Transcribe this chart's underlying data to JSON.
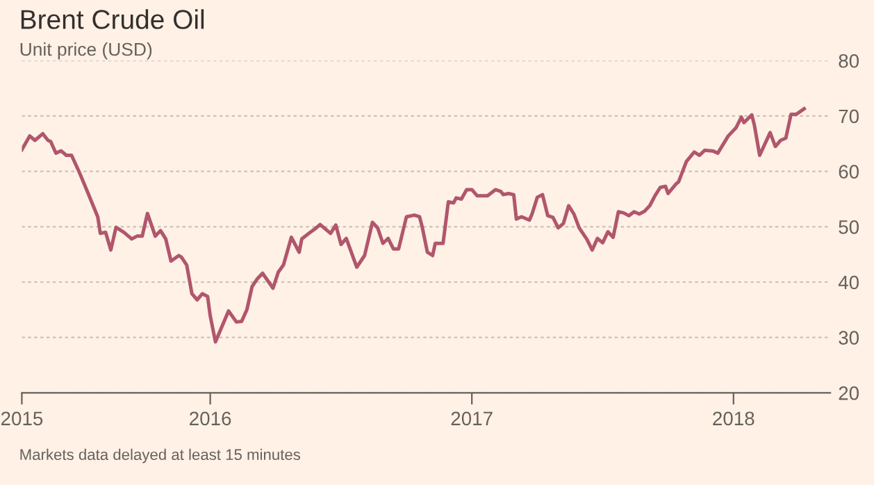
{
  "chart_data": {
    "type": "line",
    "title": "Brent Crude Oil",
    "subtitle": "Unit price (USD)",
    "annotations": [
      "Markets data delayed at least 15 minutes"
    ],
    "series": [
      {
        "color": "#b0566d",
        "x": [
          2015.28,
          2015.31,
          2015.33,
          2015.36,
          2015.38,
          2015.39,
          2015.41,
          2015.43,
          2015.45,
          2015.47,
          2015.5,
          2015.53,
          2015.57,
          2015.58,
          2015.6,
          2015.62,
          2015.64,
          2015.67,
          2015.7,
          2015.72,
          2015.74,
          2015.76,
          2015.79,
          2015.81,
          2015.83,
          2015.85,
          2015.88,
          2015.89,
          2015.91,
          2015.93,
          2015.95,
          2015.97,
          2015.99,
          2016.0,
          2016.02,
          2016.07,
          2016.1,
          2016.12,
          2016.14,
          2016.16,
          2016.18,
          2016.2,
          2016.24,
          2016.26,
          2016.28,
          2016.31,
          2016.34,
          2016.35,
          2016.38,
          2016.4,
          2016.42,
          2016.46,
          2016.48,
          2016.5,
          2016.52,
          2016.56,
          2016.59,
          2016.62,
          2016.64,
          2016.66,
          2016.68,
          2016.7,
          2016.72,
          2016.75,
          2016.78,
          2016.8,
          2016.81,
          2016.83,
          2016.85,
          2016.86,
          2016.89,
          2016.91,
          2016.93,
          2016.94,
          2016.96,
          2016.98,
          2017.0,
          2017.02,
          2017.06,
          2017.09,
          2017.11,
          2017.12,
          2017.14,
          2017.16,
          2017.17,
          2017.19,
          2017.22,
          2017.23,
          2017.25,
          2017.27,
          2017.29,
          2017.31,
          2017.33,
          2017.35,
          2017.37,
          2017.39,
          2017.41,
          2017.44,
          2017.46,
          2017.48,
          2017.5,
          2017.52,
          2017.54,
          2017.56,
          2017.58,
          2017.6,
          2017.62,
          2017.64,
          2017.66,
          2017.68,
          2017.7,
          2017.72,
          2017.74,
          2017.75,
          2017.78,
          2017.79,
          2017.82,
          2017.85,
          2017.87,
          2017.89,
          2017.92,
          2017.94,
          2017.98,
          2018.01,
          2018.03,
          2018.04,
          2018.07,
          2018.08,
          2018.1,
          2018.14,
          2018.16,
          2018.18,
          2018.2,
          2018.22,
          2018.24,
          2018.27
        ],
        "values": [
          63.9,
          66.4,
          65.6,
          66.8,
          65.6,
          65.4,
          63.3,
          63.7,
          62.9,
          62.9,
          59.8,
          56.4,
          51.8,
          48.8,
          49.0,
          45.8,
          49.9,
          49.0,
          47.8,
          48.3,
          48.3,
          52.4,
          48.3,
          49.3,
          47.8,
          43.8,
          44.8,
          44.5,
          43.1,
          37.9,
          36.8,
          37.9,
          37.4,
          33.9,
          29.2,
          34.8,
          32.8,
          32.9,
          35.0,
          39.2,
          40.6,
          41.6,
          38.9,
          41.8,
          43.1,
          48.1,
          45.4,
          47.8,
          48.9,
          49.6,
          50.4,
          48.8,
          50.3,
          46.8,
          47.9,
          42.7,
          44.8,
          50.8,
          49.8,
          47.0,
          47.9,
          46.0,
          46.0,
          51.8,
          52.1,
          51.8,
          50.0,
          45.4,
          44.8,
          47.0,
          47.0,
          54.5,
          54.3,
          55.2,
          55.0,
          56.7,
          56.7,
          55.6,
          55.6,
          56.7,
          56.4,
          55.8,
          56.0,
          55.8,
          51.4,
          51.8,
          51.2,
          52.3,
          55.3,
          55.8,
          52.0,
          51.7,
          49.8,
          50.6,
          53.8,
          52.3,
          49.8,
          47.7,
          45.8,
          47.9,
          47.1,
          49.1,
          48.1,
          52.7,
          52.5,
          52.0,
          52.7,
          52.3,
          52.8,
          53.8,
          55.6,
          57.1,
          57.3,
          56.0,
          57.7,
          58.1,
          61.8,
          63.5,
          62.9,
          63.8,
          63.7,
          63.3,
          66.4,
          67.9,
          69.8,
          68.8,
          70.2,
          68.3,
          62.9,
          67.0,
          64.5,
          65.6,
          66.0,
          70.3,
          70.3,
          71.3
        ]
      }
    ],
    "xlim": [
      2015.28,
      2018.37
    ],
    "xticks": [
      {
        "value": 2015.28,
        "label": "2015"
      },
      2016,
      2017,
      2018
    ],
    "ylim": [
      20,
      80
    ],
    "yticks": [
      20,
      30,
      40,
      50,
      60,
      70,
      80
    ],
    "grid": "y",
    "line_style": "solid",
    "marker": "none"
  }
}
